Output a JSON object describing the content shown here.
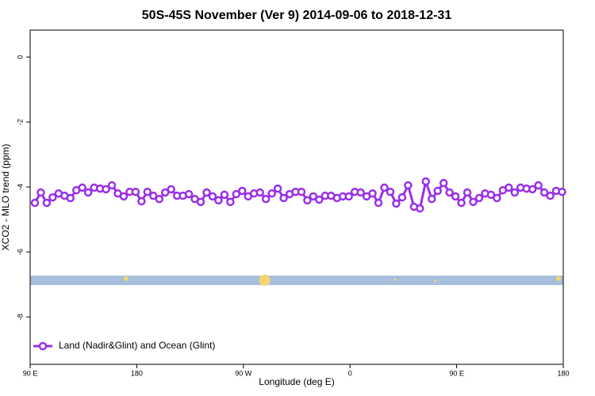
{
  "chart_data": {
    "type": "line",
    "title": "50S-45S November (Ver 9)   2014-09-06 to 2018-12-31",
    "x_label": "Longitude (deg E)",
    "y_label": "XCO2 - MLO trend (ppm)",
    "xlim": [
      90,
      540
    ],
    "xticks": [
      {
        "value": 90,
        "label": "90 E"
      },
      180,
      {
        "value": 270,
        "label": "90 W"
      },
      {
        "value": 360,
        "label": "0"
      },
      {
        "value": 450,
        "label": "90 E"
      },
      {
        "value": 540,
        "label": "180"
      }
    ],
    "ylim": [
      -9.46,
      0.83
    ],
    "yticks": [
      0,
      -2,
      -4,
      -6,
      -8
    ],
    "legend": "bottom-left",
    "x": [
      94,
      99,
      104,
      109,
      114,
      119,
      124,
      129,
      134,
      139,
      144,
      149,
      154,
      159,
      164,
      169,
      174,
      179,
      184,
      189,
      194,
      199,
      204,
      209,
      214,
      219,
      224,
      229,
      234,
      239,
      244,
      249,
      254,
      259,
      264,
      269,
      274,
      279,
      284,
      289,
      294,
      299,
      304,
      309,
      314,
      319,
      324,
      329,
      334,
      339,
      344,
      349,
      354,
      359,
      364,
      369,
      374,
      379,
      384,
      389,
      394,
      399,
      404,
      409,
      414,
      419,
      424,
      429,
      434,
      439,
      444,
      449,
      454,
      459,
      464,
      469,
      474,
      479,
      484,
      489,
      494,
      499,
      504,
      509,
      514,
      519,
      524,
      529,
      534,
      539
    ],
    "series": [
      {
        "name": "Land (Nadir&Glint) and Ocean (Glint)",
        "color": "#9b30e6",
        "values": [
          -4.49,
          -4.17,
          -4.49,
          -4.32,
          -4.2,
          -4.27,
          -4.34,
          -4.1,
          -4.02,
          -4.17,
          -4.02,
          -4.05,
          -4.07,
          -3.95,
          -4.2,
          -4.29,
          -4.15,
          -4.15,
          -4.44,
          -4.15,
          -4.27,
          -4.37,
          -4.17,
          -4.07,
          -4.27,
          -4.27,
          -4.22,
          -4.37,
          -4.46,
          -4.17,
          -4.29,
          -4.41,
          -4.24,
          -4.46,
          -4.22,
          -4.12,
          -4.29,
          -4.2,
          -4.17,
          -4.37,
          -4.2,
          -4.05,
          -4.34,
          -4.22,
          -4.15,
          -4.15,
          -4.41,
          -4.29,
          -4.39,
          -4.27,
          -4.27,
          -4.34,
          -4.29,
          -4.29,
          -4.15,
          -4.17,
          -4.29,
          -4.2,
          -4.49,
          -4.02,
          -4.15,
          -4.51,
          -4.32,
          -3.95,
          -4.61,
          -4.66,
          -3.83,
          -4.37,
          -4.12,
          -3.88,
          -4.17,
          -4.29,
          -4.49,
          -4.17,
          -4.46,
          -4.34,
          -4.2,
          -4.24,
          -4.34,
          -4.1,
          -4.02,
          -4.17,
          -4.02,
          -4.05,
          -4.07,
          -3.95,
          -4.17,
          -4.27,
          -4.12,
          -4.15
        ]
      }
    ],
    "band": {
      "ylim": [
        -7.02,
        -6.73
      ],
      "color": "#a7bedc"
    },
    "highlights": {
      "color": "#f7d56e",
      "x": [
        171,
        288,
        398,
        432,
        536
      ],
      "y": [
        -6.82,
        -6.87,
        -6.85,
        -6.88,
        -6.82
      ],
      "size": [
        3,
        7,
        1.5,
        1.5,
        3
      ]
    }
  }
}
